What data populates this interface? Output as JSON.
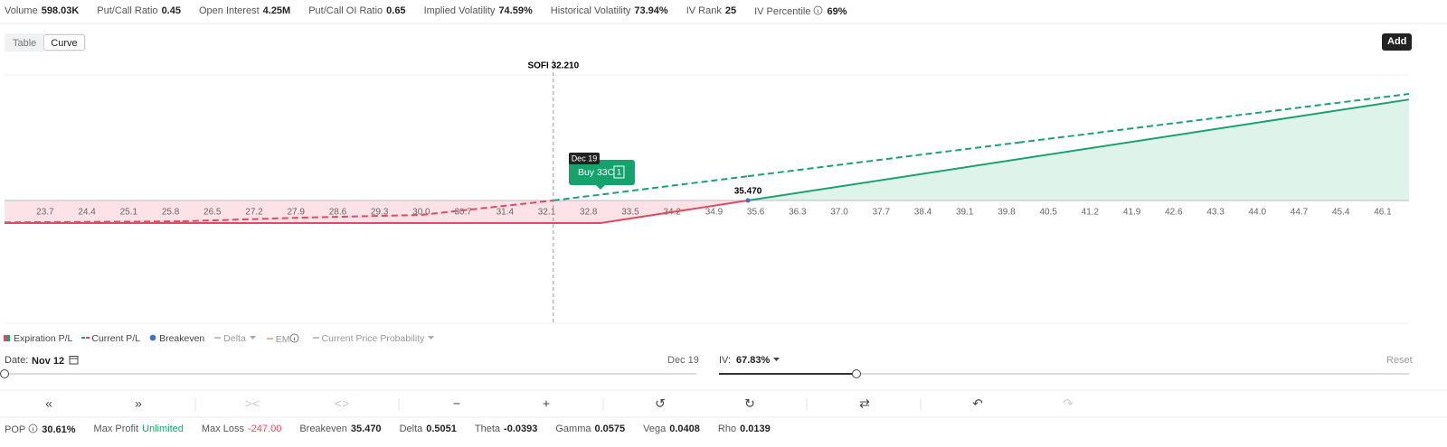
{
  "stats": [
    {
      "label": "Volume",
      "value": "598.03K"
    },
    {
      "label": "Put/Call Ratio",
      "value": "0.45"
    },
    {
      "label": "Open Interest",
      "value": "4.25M"
    },
    {
      "label": "Put/Call OI Ratio",
      "value": "0.65"
    },
    {
      "label": "Implied Volatility",
      "value": "74.59%"
    },
    {
      "label": "Historical Volatility",
      "value": "73.94%"
    },
    {
      "label": "IV Rank",
      "value": "25"
    },
    {
      "label": "IV Percentile",
      "value": "69%",
      "info": true
    }
  ],
  "tabs": [
    {
      "label": "Table",
      "selected": false
    },
    {
      "label": "Curve",
      "selected": true
    }
  ],
  "add_button": "Add",
  "chart_data": {
    "type": "line",
    "spot": 32.21,
    "spot_label": "SOFI 32.210",
    "breakeven": {
      "value": 35.47,
      "label": "35.470"
    },
    "tooltip": {
      "date": "Dec 19",
      "label": "Buy 33C",
      "qty": "1"
    },
    "xlim": [
      23.02,
      46.54
    ],
    "ylim": [
      -1346,
      1376
    ],
    "xticks": [
      23.7,
      24.4,
      25.1,
      25.8,
      26.5,
      27.2,
      27.9,
      28.6,
      29.3,
      {
        "value": 30,
        "label": "30.0"
      },
      30.7,
      31.4,
      32.1,
      32.8,
      33.5,
      34.2,
      34.9,
      35.6,
      36.3,
      {
        "value": 37,
        "label": "37.0"
      },
      37.7,
      38.4,
      39.1,
      39.8,
      40.5,
      41.2,
      41.9,
      42.6,
      43.3,
      {
        "value": 44,
        "label": "44.0"
      },
      44.7,
      45.4,
      46.1
    ],
    "series": [
      {
        "name": "Expiration P/L",
        "color": "#1aa36f",
        "loss_color": "#e04a62",
        "dashed": false,
        "x": [
          23.02,
          33,
          35.47,
          46.54
        ],
        "values": [
          -247,
          -247,
          0,
          1107
        ]
      },
      {
        "name": "Current P/L",
        "color": "#1aa36f",
        "loss_color": "#e04a62",
        "dashed": true,
        "x": [
          23.02,
          26,
          28,
          30,
          32.21,
          35.47,
          40,
          46.54
        ],
        "values": [
          -240,
          -228,
          -188,
          -158,
          0,
          266,
          635,
          1168
        ]
      }
    ]
  },
  "legend": [
    {
      "name": "Breakeven",
      "color": "#3b6fd4",
      "active": true
    },
    {
      "name": "Delta",
      "color": "#aaa",
      "active": false,
      "menu": true
    },
    {
      "name": "EM",
      "color": "#f0a040",
      "active": false,
      "info": true
    },
    {
      "name": "Current Price Probability",
      "color": "#aaa",
      "active": false,
      "menu": true
    }
  ],
  "controls": {
    "date_label": "Date:",
    "date": "Nov 12",
    "date_end": "Dec 19",
    "iv_label": "IV:",
    "iv": "67.83%",
    "reset": "Reset"
  },
  "toolbar": [
    {
      "icon": "«",
      "enabled": true
    },
    {
      "icon": "»",
      "enabled": true
    },
    {
      "icon": "><",
      "enabled": false
    },
    {
      "icon": "<>",
      "enabled": false
    },
    {
      "icon": "−",
      "enabled": true
    },
    {
      "icon": "+",
      "enabled": true
    },
    {
      "icon": "↺",
      "enabled": true
    },
    {
      "icon": "↻",
      "enabled": true
    },
    {
      "icon": "⇄",
      "enabled": true
    },
    {
      "icon": "↶",
      "enabled": true
    },
    {
      "icon": "↷",
      "enabled": false
    }
  ],
  "footer": [
    {
      "label": "POP",
      "value": "30.61%",
      "info": true
    },
    {
      "label": "Max Profit",
      "value": "Unlimited",
      "color": "#1aa36f"
    },
    {
      "label": "Max Loss",
      "value": "-247.00",
      "color": "#e04a62"
    },
    {
      "label": "Breakeven",
      "value": "35.470"
    },
    {
      "label": "Delta",
      "value": "0.5051"
    },
    {
      "label": "Theta",
      "value": "-0.0393"
    },
    {
      "label": "Gamma",
      "value": "0.0575"
    },
    {
      "label": "Vega",
      "value": "0.0408"
    },
    {
      "label": "Rho",
      "value": "0.0139"
    }
  ]
}
